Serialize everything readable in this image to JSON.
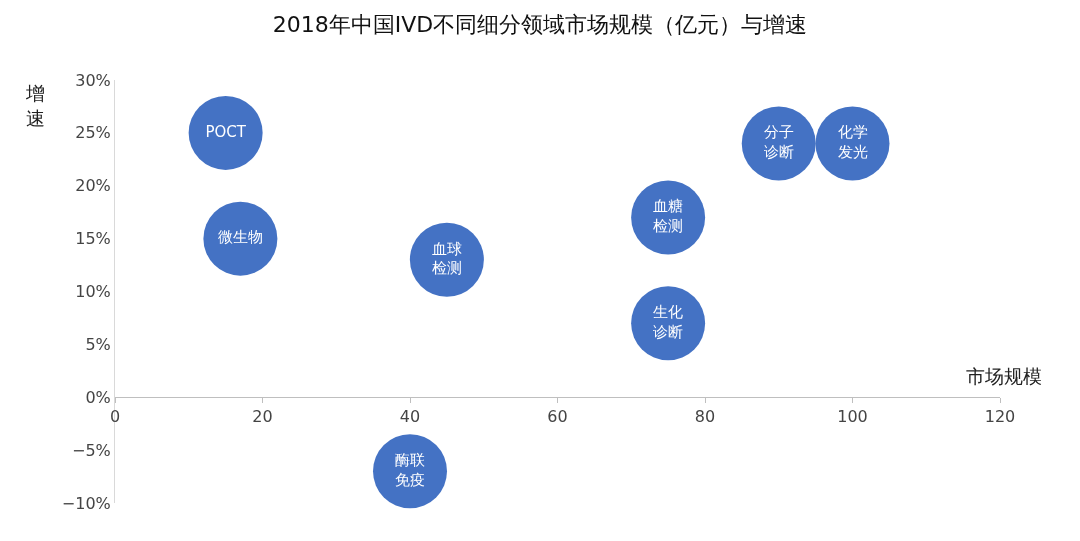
{
  "chart_data": {
    "type": "bubble",
    "title": "2018年中国IVD不同细分领域市场规模（亿元）与增速",
    "xlabel": "市场规模",
    "ylabel": "增速",
    "series": [
      {
        "name": "POCT",
        "color": "#4472c4",
        "x": [
          15
        ],
        "values": [
          25
        ],
        "sizes": [
          1
        ]
      },
      {
        "name": "微生物",
        "color": "#4472c4",
        "x": [
          17
        ],
        "values": [
          15
        ],
        "sizes": [
          1
        ]
      },
      {
        "name": "血球检测",
        "color": "#4472c4",
        "x": [
          45
        ],
        "values": [
          13
        ],
        "sizes": [
          1
        ]
      },
      {
        "name": "血糖检测",
        "color": "#4472c4",
        "x": [
          75
        ],
        "values": [
          17
        ],
        "sizes": [
          1
        ]
      },
      {
        "name": "生化诊断",
        "color": "#4472c4",
        "x": [
          75
        ],
        "values": [
          7
        ],
        "sizes": [
          1
        ]
      },
      {
        "name": "分子诊断",
        "color": "#4472c4",
        "x": [
          90
        ],
        "values": [
          24
        ],
        "sizes": [
          1
        ]
      },
      {
        "name": "化学发光",
        "color": "#4472c4",
        "x": [
          100
        ],
        "values": [
          24
        ],
        "sizes": [
          1
        ]
      },
      {
        "name": "酶联免疫",
        "color": "#4472c4",
        "x": [
          40
        ],
        "values": [
          -7
        ],
        "sizes": [
          1
        ]
      }
    ],
    "xlim": [
      0,
      120
    ],
    "xticks": [
      0,
      20,
      40,
      60,
      80,
      100,
      120
    ],
    "ylim": [
      -10,
      30
    ],
    "yticks": [
      {
        "value": -10,
        "label": "−10%"
      },
      {
        "value": -5,
        "label": "−5%"
      },
      {
        "value": 0,
        "label": "0%"
      },
      {
        "value": 5,
        "label": "5%"
      },
      {
        "value": 10,
        "label": "10%"
      },
      {
        "value": 15,
        "label": "15%"
      },
      {
        "value": 20,
        "label": "20%"
      },
      {
        "value": 25,
        "label": "25%"
      },
      {
        "value": 30,
        "label": "30%"
      }
    ],
    "grid": false,
    "legend": false,
    "marker": "circle"
  }
}
